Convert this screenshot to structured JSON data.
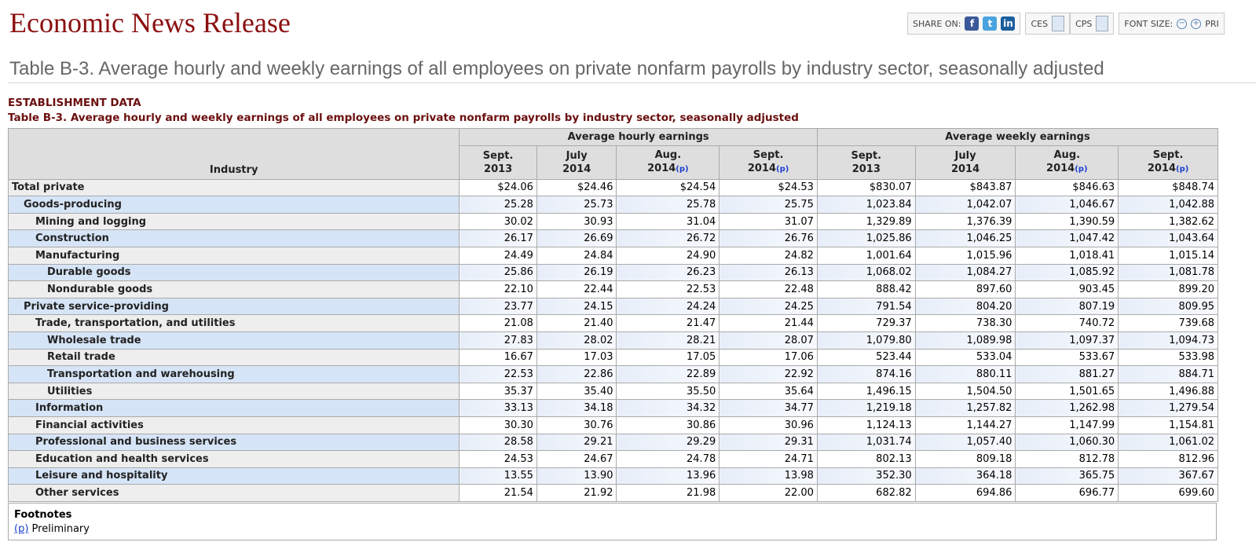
{
  "header": {
    "title": "Economic News Release",
    "share_label": "SHARE ON:",
    "ces": "CES",
    "cps": "CPS",
    "font_size": "FONT SIZE:",
    "print": "PRI",
    "icons": [
      "facebook-icon",
      "twitter-icon",
      "linkedin-icon"
    ],
    "brand_color": "#8b0f0f"
  },
  "page_title": "Table B-3. Average hourly and weekly earnings of all employees on private nonfarm payrolls by industry sector, seasonally adjusted",
  "section": "ESTABLISHMENT DATA",
  "table_title": "Table B-3. Average hourly and weekly earnings of all employees on private nonfarm payrolls by industry sector, seasonally adjusted",
  "table": {
    "industry_header": "Industry",
    "group_headers": [
      "Average hourly earnings",
      "Average weekly earnings"
    ],
    "columns": [
      {
        "m": "Sept.",
        "y": "2013",
        "p": ""
      },
      {
        "m": "July",
        "y": "2014",
        "p": ""
      },
      {
        "m": "Aug.",
        "y": "2014",
        "p": "(p)"
      },
      {
        "m": "Sept.",
        "y": "2014",
        "p": "(p)"
      },
      {
        "m": "Sept.",
        "y": "2013",
        "p": ""
      },
      {
        "m": "July",
        "y": "2014",
        "p": ""
      },
      {
        "m": "Aug.",
        "y": "2014",
        "p": "(p)"
      },
      {
        "m": "Sept.",
        "y": "2014",
        "p": "(p)"
      }
    ],
    "rows": [
      {
        "label": "Total private",
        "level": 0,
        "values": [
          "$24.06",
          "$24.46",
          "$24.54",
          "$24.53",
          "$830.07",
          "$843.87",
          "$846.63",
          "$848.74"
        ]
      },
      {
        "label": "Goods-producing",
        "level": 1,
        "values": [
          "25.28",
          "25.73",
          "25.78",
          "25.75",
          "1,023.84",
          "1,042.07",
          "1,046.67",
          "1,042.88"
        ]
      },
      {
        "label": "Mining and logging",
        "level": 2,
        "values": [
          "30.02",
          "30.93",
          "31.04",
          "31.07",
          "1,329.89",
          "1,376.39",
          "1,390.59",
          "1,382.62"
        ]
      },
      {
        "label": "Construction",
        "level": 2,
        "values": [
          "26.17",
          "26.69",
          "26.72",
          "26.76",
          "1,025.86",
          "1,046.25",
          "1,047.42",
          "1,043.64"
        ]
      },
      {
        "label": "Manufacturing",
        "level": 2,
        "values": [
          "24.49",
          "24.84",
          "24.90",
          "24.82",
          "1,001.64",
          "1,015.96",
          "1,018.41",
          "1,015.14"
        ]
      },
      {
        "label": "Durable goods",
        "level": 3,
        "values": [
          "25.86",
          "26.19",
          "26.23",
          "26.13",
          "1,068.02",
          "1,084.27",
          "1,085.92",
          "1,081.78"
        ]
      },
      {
        "label": "Nondurable goods",
        "level": 3,
        "values": [
          "22.10",
          "22.44",
          "22.53",
          "22.48",
          "888.42",
          "897.60",
          "903.45",
          "899.20"
        ]
      },
      {
        "label": "Private service-providing",
        "level": 1,
        "values": [
          "23.77",
          "24.15",
          "24.24",
          "24.25",
          "791.54",
          "804.20",
          "807.19",
          "809.95"
        ]
      },
      {
        "label": "Trade, transportation, and utilities",
        "level": 2,
        "values": [
          "21.08",
          "21.40",
          "21.47",
          "21.44",
          "729.37",
          "738.30",
          "740.72",
          "739.68"
        ]
      },
      {
        "label": "Wholesale trade",
        "level": 3,
        "values": [
          "27.83",
          "28.02",
          "28.21",
          "28.07",
          "1,079.80",
          "1,089.98",
          "1,097.37",
          "1,094.73"
        ]
      },
      {
        "label": "Retail trade",
        "level": 3,
        "values": [
          "16.67",
          "17.03",
          "17.05",
          "17.06",
          "523.44",
          "533.04",
          "533.67",
          "533.98"
        ]
      },
      {
        "label": "Transportation and warehousing",
        "level": 3,
        "values": [
          "22.53",
          "22.86",
          "22.89",
          "22.92",
          "874.16",
          "880.11",
          "881.27",
          "884.71"
        ]
      },
      {
        "label": "Utilities",
        "level": 3,
        "values": [
          "35.37",
          "35.40",
          "35.50",
          "35.64",
          "1,496.15",
          "1,504.50",
          "1,501.65",
          "1,496.88"
        ]
      },
      {
        "label": "Information",
        "level": 2,
        "values": [
          "33.13",
          "34.18",
          "34.32",
          "34.77",
          "1,219.18",
          "1,257.82",
          "1,262.98",
          "1,279.54"
        ]
      },
      {
        "label": "Financial activities",
        "level": 2,
        "values": [
          "30.30",
          "30.76",
          "30.86",
          "30.96",
          "1,124.13",
          "1,144.27",
          "1,147.99",
          "1,154.81"
        ]
      },
      {
        "label": "Professional and business services",
        "level": 2,
        "values": [
          "28.58",
          "29.21",
          "29.29",
          "29.31",
          "1,031.74",
          "1,057.40",
          "1,060.30",
          "1,061.02"
        ]
      },
      {
        "label": "Education and health services",
        "level": 2,
        "values": [
          "24.53",
          "24.67",
          "24.78",
          "24.71",
          "802.13",
          "809.18",
          "812.78",
          "812.96"
        ]
      },
      {
        "label": "Leisure and hospitality",
        "level": 2,
        "values": [
          "13.55",
          "13.90",
          "13.96",
          "13.98",
          "352.30",
          "364.18",
          "365.75",
          "367.67"
        ]
      },
      {
        "label": "Other services",
        "level": 2,
        "values": [
          "21.54",
          "21.92",
          "21.98",
          "22.00",
          "682.82",
          "694.86",
          "696.77",
          "699.60"
        ]
      }
    ]
  },
  "footnotes": {
    "title": "Footnotes",
    "marker": "(p)",
    "text": "Preliminary"
  }
}
